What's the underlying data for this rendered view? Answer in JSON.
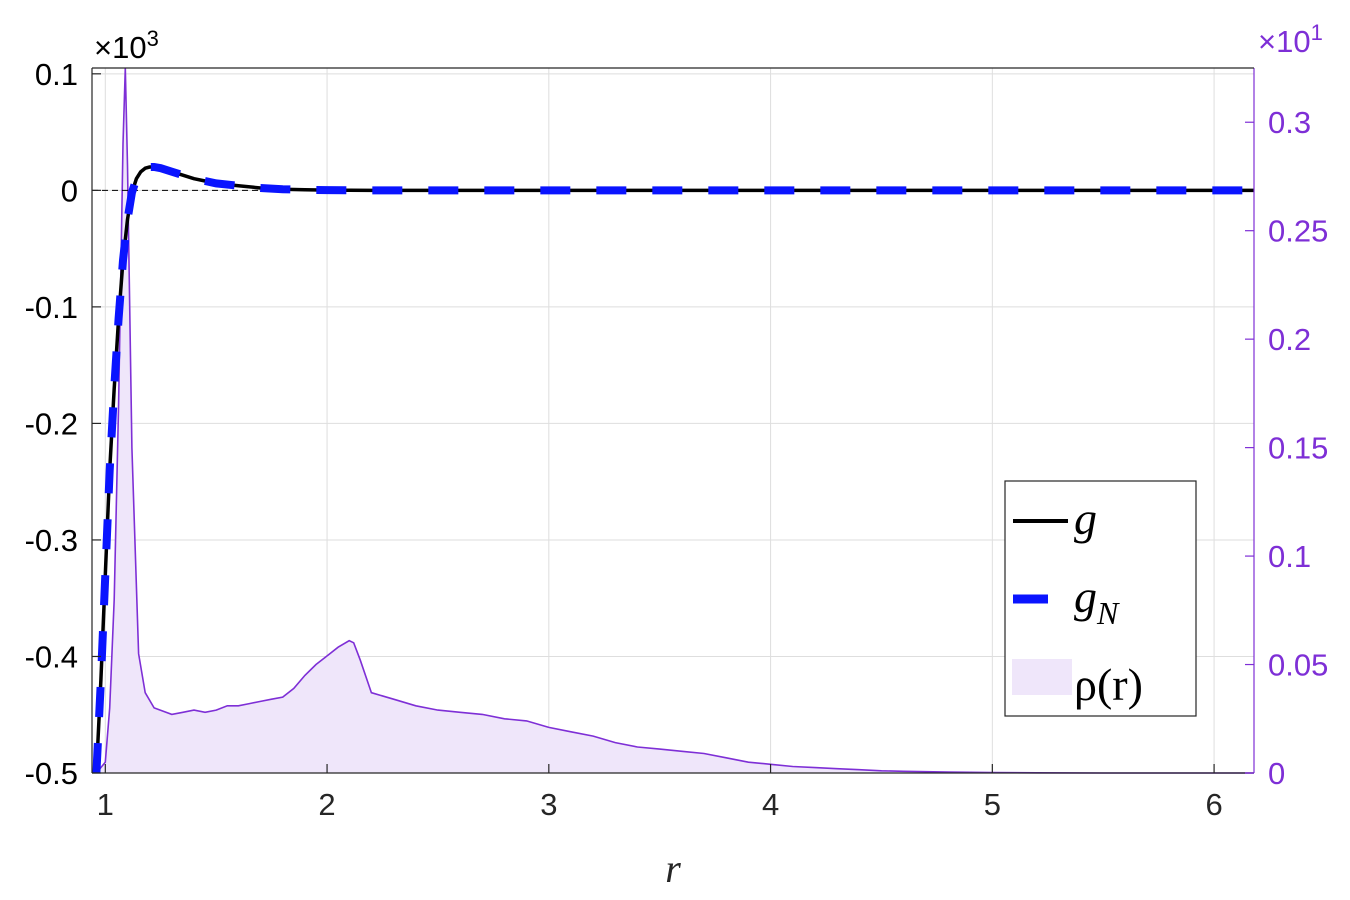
{
  "chart_data": {
    "type": "line",
    "xlabel": "r",
    "xlim": [
      0.94,
      6.18
    ],
    "x_ticks": [
      1,
      2,
      3,
      4,
      5,
      6
    ],
    "x_tick_labels": [
      "1",
      "2",
      "3",
      "4",
      "5",
      "6"
    ],
    "left_axis": {
      "ylim": [
        -0.5,
        0.105
      ],
      "ticks": [
        -0.5,
        -0.4,
        -0.3,
        -0.2,
        -0.1,
        0,
        0.1
      ],
      "tick_labels": [
        "-0.5",
        "-0.4",
        "-0.3",
        "-0.2",
        "-0.1",
        "0",
        "0.1"
      ],
      "exponent_label": "×10",
      "exponent": "3",
      "color": "#000000"
    },
    "right_axis": {
      "ylim": [
        0,
        0.325
      ],
      "ticks": [
        0,
        0.05,
        0.1,
        0.15,
        0.2,
        0.25,
        0.3
      ],
      "tick_labels": [
        "0",
        "0.05",
        "0.1",
        "0.15",
        "0.2",
        "0.25",
        "0.3"
      ],
      "exponent_label": "×10",
      "exponent": "1",
      "color": "#7e2fd6"
    },
    "grid": true,
    "zero_reference_line": true,
    "legend_position": "right",
    "series": [
      {
        "name": "g",
        "axis": "left",
        "style": "solid",
        "color": "#000000",
        "x": [
          0.96,
          0.98,
          1.0,
          1.02,
          1.04,
          1.06,
          1.08,
          1.1,
          1.12,
          1.14,
          1.16,
          1.18,
          1.2,
          1.22,
          1.25,
          1.3,
          1.35,
          1.4,
          1.45,
          1.5,
          1.6,
          1.7,
          1.8,
          1.9,
          2.0,
          2.2,
          2.5,
          3.0,
          4.0,
          5.0,
          6.18
        ],
        "y": [
          -0.5,
          -0.42,
          -0.33,
          -0.24,
          -0.17,
          -0.11,
          -0.06,
          -0.025,
          -0.002,
          0.01,
          0.016,
          0.019,
          0.02,
          0.02,
          0.019,
          0.016,
          0.013,
          0.01,
          0.008,
          0.006,
          0.004,
          0.002,
          0.001,
          0.0005,
          0.0002,
          0.0,
          0.0,
          0.0,
          0.0,
          0.0,
          0.0
        ]
      },
      {
        "name": "g",
        "subscript": "N",
        "axis": "left",
        "style": "dashed",
        "color": "#0a14ff",
        "x": [
          0.96,
          0.98,
          1.0,
          1.02,
          1.04,
          1.06,
          1.08,
          1.1,
          1.12,
          1.14,
          1.16,
          1.18,
          1.2,
          1.22,
          1.25,
          1.3,
          1.35,
          1.4,
          1.45,
          1.5,
          1.6,
          1.7,
          1.8,
          1.9,
          2.0,
          2.2,
          2.5,
          3.0,
          4.0,
          5.0,
          6.18
        ],
        "y": [
          -0.5,
          -0.42,
          -0.33,
          -0.24,
          -0.17,
          -0.11,
          -0.06,
          -0.025,
          -0.002,
          0.01,
          0.016,
          0.019,
          0.02,
          0.02,
          0.019,
          0.016,
          0.013,
          0.01,
          0.008,
          0.006,
          0.004,
          0.002,
          0.001,
          0.0005,
          0.0002,
          0.0,
          0.0,
          0.0,
          0.0,
          0.0,
          0.0
        ]
      },
      {
        "name": "ρ(r)",
        "axis": "right",
        "style": "area",
        "color": "#7e2fd6",
        "fill": "#efe6fa",
        "x": [
          0.96,
          1.0,
          1.02,
          1.04,
          1.06,
          1.08,
          1.09,
          1.1,
          1.12,
          1.15,
          1.18,
          1.22,
          1.3,
          1.35,
          1.4,
          1.45,
          1.5,
          1.55,
          1.6,
          1.65,
          1.7,
          1.75,
          1.8,
          1.85,
          1.9,
          1.95,
          2.0,
          2.05,
          2.1,
          2.12,
          2.15,
          2.2,
          2.3,
          2.4,
          2.5,
          2.6,
          2.7,
          2.8,
          2.9,
          3.0,
          3.1,
          3.2,
          3.3,
          3.4,
          3.5,
          3.6,
          3.7,
          3.8,
          3.9,
          4.0,
          4.1,
          4.2,
          4.3,
          4.4,
          4.5,
          4.6,
          4.7,
          4.8,
          4.9,
          5.0,
          5.2,
          5.5,
          6.0,
          6.18
        ],
        "y": [
          0.0,
          0.005,
          0.03,
          0.08,
          0.17,
          0.29,
          0.325,
          0.28,
          0.15,
          0.055,
          0.037,
          0.03,
          0.027,
          0.028,
          0.029,
          0.028,
          0.029,
          0.031,
          0.031,
          0.032,
          0.033,
          0.034,
          0.035,
          0.039,
          0.045,
          0.05,
          0.054,
          0.058,
          0.061,
          0.06,
          0.052,
          0.037,
          0.034,
          0.031,
          0.029,
          0.028,
          0.027,
          0.025,
          0.024,
          0.021,
          0.019,
          0.017,
          0.014,
          0.012,
          0.011,
          0.01,
          0.009,
          0.007,
          0.005,
          0.004,
          0.003,
          0.0025,
          0.002,
          0.0015,
          0.001,
          0.0008,
          0.0006,
          0.0004,
          0.0003,
          0.0002,
          0.0001,
          0.0,
          0.0,
          0.0
        ]
      }
    ]
  }
}
